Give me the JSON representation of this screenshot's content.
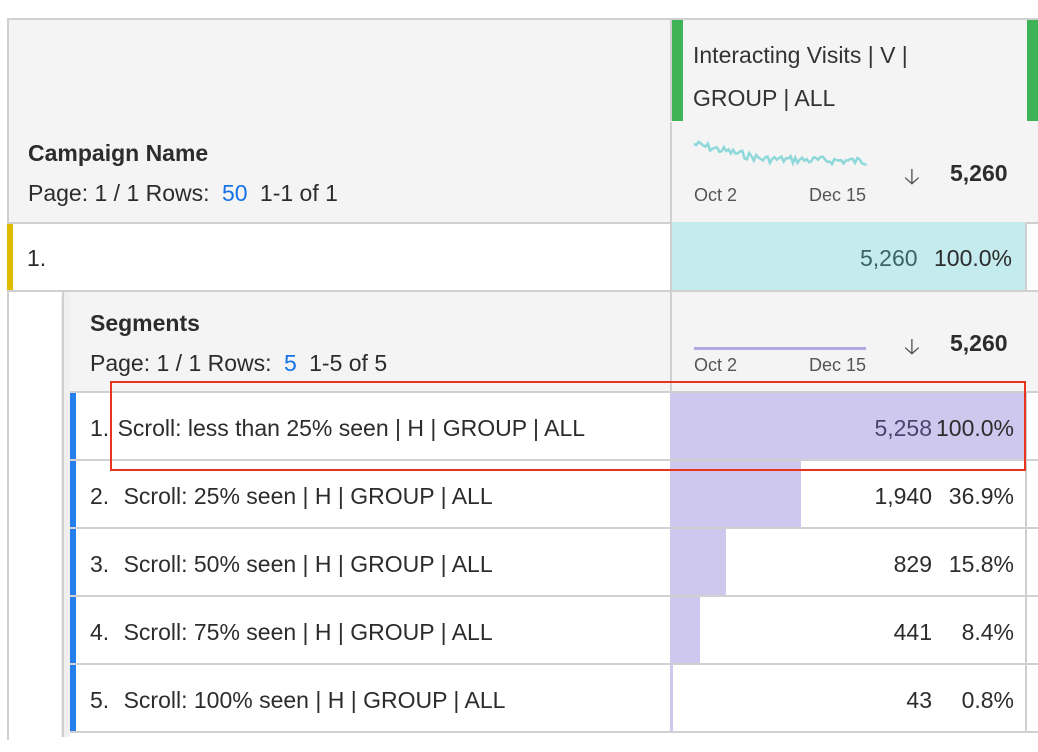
{
  "column": {
    "header": "Interacting Visits | V | GROUP | ALL",
    "header_line1": "Interacting Visits | V |",
    "header_line2": "GROUP | ALL",
    "accent": "#3fb457"
  },
  "campaign": {
    "title": "Campaign Name",
    "page_label": "Page: 1 / 1 Rows:",
    "rows_value": "50",
    "range": "1-1 of 1",
    "spark_start": "Oct 2",
    "spark_end": "Dec 15",
    "sort_icon": "arrow-down-icon",
    "total": "5,260",
    "rows": [
      {
        "index": "1.",
        "label": "",
        "value": "5,260",
        "percent": "100.0%",
        "fraction": 1.0
      }
    ]
  },
  "segments": {
    "title": "Segments",
    "page_label": "Page: 1 / 1 Rows:",
    "rows_value": "5",
    "range": "1-5 of 5",
    "spark_start": "Oct 2",
    "spark_end": "Dec 15",
    "total": "5,260",
    "rows": [
      {
        "index": "1.",
        "label": "Scroll: less than 25% seen | H | GROUP | ALL",
        "value": "5,258",
        "percent": "100.0%",
        "fraction": 1.0
      },
      {
        "index": "2.",
        "label": "Scroll: 25% seen | H | GROUP | ALL",
        "value": "1,940",
        "percent": "36.9%",
        "fraction": 0.369
      },
      {
        "index": "3.",
        "label": "Scroll: 50% seen | H | GROUP | ALL",
        "value": "829",
        "percent": "15.8%",
        "fraction": 0.158
      },
      {
        "index": "4.",
        "label": "Scroll: 75% seen | H | GROUP | ALL",
        "value": "441",
        "percent": "8.4%",
        "fraction": 0.084
      },
      {
        "index": "5.",
        "label": "Scroll: 100% seen | H | GROUP | ALL",
        "value": "43",
        "percent": "0.8%",
        "fraction": 0.008
      }
    ]
  },
  "colors": {
    "teal": "#c4ebed",
    "purple": "#cfc8ee",
    "highlight": "#e8361e",
    "row_accent_blue": "#2680eb",
    "row_accent_yellow": "#e0bb00"
  }
}
